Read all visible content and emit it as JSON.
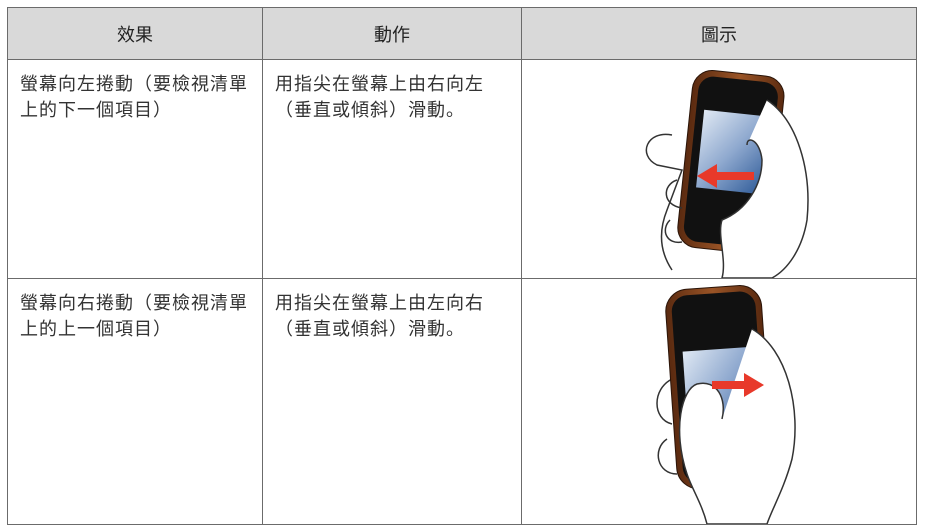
{
  "table": {
    "header": [
      "效果",
      "動作",
      "圖示"
    ],
    "rows": [
      [
        "螢幕向左捲動（要檢視清單上的下一個項目）",
        "用指尖在螢幕上由右向左（垂直或傾斜）滑動。"
      ],
      [
        "螢幕向右捲動（要檢視清單上的上一個項目）",
        "用指尖在螢幕上由左向右（垂直或傾斜）滑動。"
      ]
    ]
  }
}
